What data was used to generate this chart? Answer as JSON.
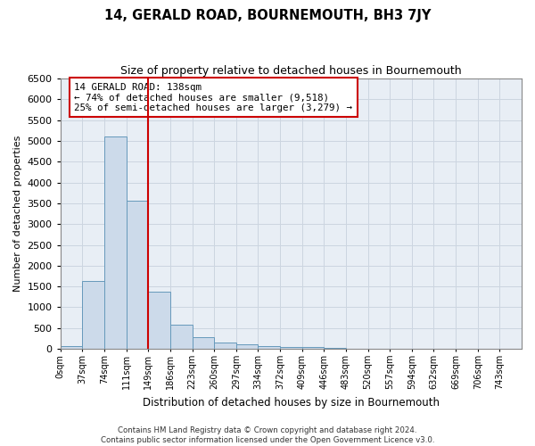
{
  "title": "14, GERALD ROAD, BOURNEMOUTH, BH3 7JY",
  "subtitle": "Size of property relative to detached houses in Bournemouth",
  "xlabel": "Distribution of detached houses by size in Bournemouth",
  "ylabel": "Number of detached properties",
  "bar_color": "#ccdaea",
  "bar_edge_color": "#6699bb",
  "grid_color": "#ccd5e0",
  "background_color": "#e8eef5",
  "marker_line_color": "#cc0000",
  "annotation_box_color": "#ffffff",
  "annotation_box_edge": "#cc0000",
  "bin_labels": [
    "0sqm",
    "37sqm",
    "74sqm",
    "111sqm",
    "149sqm",
    "186sqm",
    "223sqm",
    "260sqm",
    "297sqm",
    "334sqm",
    "372sqm",
    "409sqm",
    "446sqm",
    "483sqm",
    "520sqm",
    "557sqm",
    "594sqm",
    "632sqm",
    "669sqm",
    "706sqm",
    "743sqm"
  ],
  "bar_heights": [
    75,
    1640,
    5100,
    3570,
    1380,
    590,
    290,
    155,
    100,
    70,
    45,
    45,
    30,
    0,
    0,
    0,
    0,
    0,
    0,
    0,
    0
  ],
  "marker_bin_index": 4,
  "ylim": [
    0,
    6500
  ],
  "yticks": [
    0,
    500,
    1000,
    1500,
    2000,
    2500,
    3000,
    3500,
    4000,
    4500,
    5000,
    5500,
    6000,
    6500
  ],
  "annotation_title": "14 GERALD ROAD: 138sqm",
  "annotation_line1": "← 74% of detached houses are smaller (9,518)",
  "annotation_line2": "25% of semi-detached houses are larger (3,279) →",
  "footer1": "Contains HM Land Registry data © Crown copyright and database right 2024.",
  "footer2": "Contains public sector information licensed under the Open Government Licence v3.0."
}
